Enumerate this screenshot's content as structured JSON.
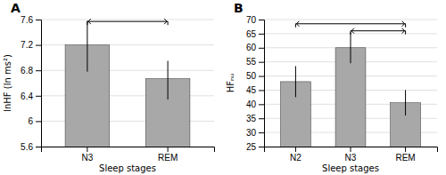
{
  "chart_data": [
    {
      "type": "bar",
      "title": "A",
      "categories": [
        "N3",
        "REM"
      ],
      "values": [
        7.2,
        6.67
      ],
      "errors_up": [
        0.38,
        0.28
      ],
      "errors_down": [
        0.42,
        0.33
      ],
      "color": "#a8a8a8",
      "xlabel": "Sleep stages",
      "ylabel": "lnHF (ln ms²)",
      "ylim": [
        5.6,
        7.6
      ],
      "yticks": [
        5.6,
        6,
        6.4,
        6.8,
        7.2,
        7.6
      ],
      "grid": true,
      "brackets": [
        {
          "from": "N3",
          "to": "REM",
          "y": 7.57
        }
      ]
    },
    {
      "type": "bar",
      "title": "B",
      "categories": [
        "N2",
        "N3",
        "REM"
      ],
      "values": [
        48,
        60,
        40.5
      ],
      "errors_up": [
        5.5,
        5.5,
        4.5
      ],
      "errors_down": [
        5.5,
        5.5,
        4.5
      ],
      "color": "#a8a8a8",
      "xlabel": "Sleep stages",
      "ylabel": "HFₙᵤ",
      "ylim": [
        25,
        70
      ],
      "yticks": [
        25,
        30,
        35,
        40,
        45,
        50,
        55,
        60,
        65,
        70
      ],
      "grid": true,
      "brackets": [
        {
          "from": "N2",
          "to": "REM",
          "y": 68.5
        },
        {
          "from": "N3",
          "to": "REM",
          "y": 66
        }
      ]
    }
  ]
}
